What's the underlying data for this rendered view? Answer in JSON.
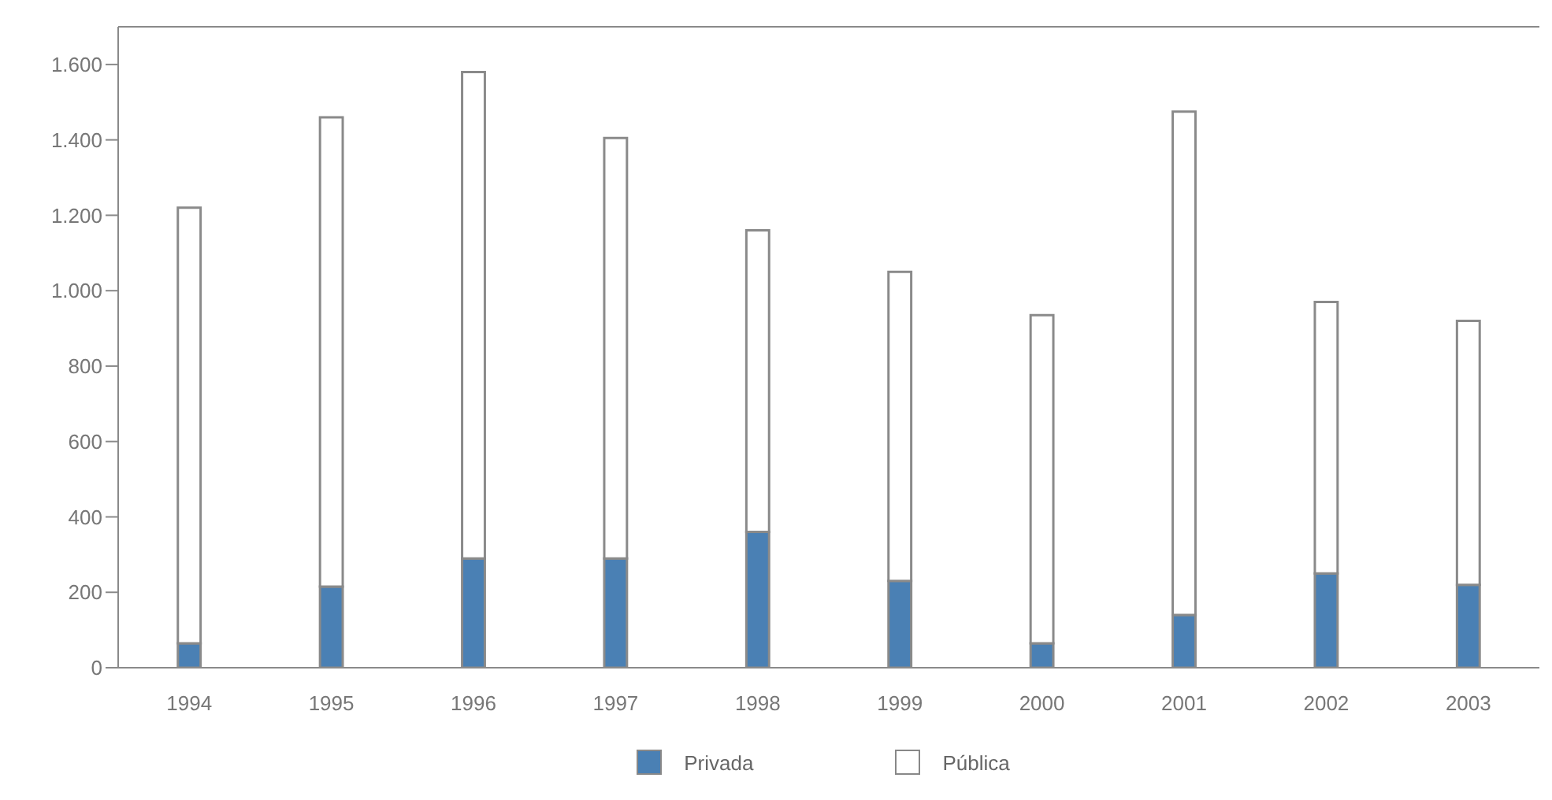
{
  "chart_data": {
    "type": "bar",
    "stacked": true,
    "categories": [
      "1994",
      "1995",
      "1996",
      "1997",
      "1998",
      "1999",
      "2000",
      "2001",
      "2002",
      "2003"
    ],
    "series": [
      {
        "name": "Privada",
        "color": "#4a80b4",
        "values": [
          65,
          215,
          290,
          290,
          360,
          230,
          65,
          140,
          250,
          220
        ]
      },
      {
        "name": "Pública",
        "color": "#ffffff",
        "values": [
          1155,
          1245,
          1290,
          1115,
          800,
          820,
          870,
          1335,
          720,
          700
        ]
      }
    ],
    "ylim": [
      0,
      1700
    ],
    "yticks": [
      0,
      {
        "value": 200,
        "label": "200"
      },
      {
        "value": 400,
        "label": "400"
      },
      {
        "value": 600,
        "label": "600"
      },
      {
        "value": 800,
        "label": "800"
      },
      {
        "value": 1000,
        "label": "1.000"
      },
      {
        "value": 1200,
        "label": "1.200"
      },
      {
        "value": 1400,
        "label": "1.400"
      },
      {
        "value": 1600,
        "label": "1.600"
      }
    ],
    "grid": false,
    "legend": "bottom"
  }
}
